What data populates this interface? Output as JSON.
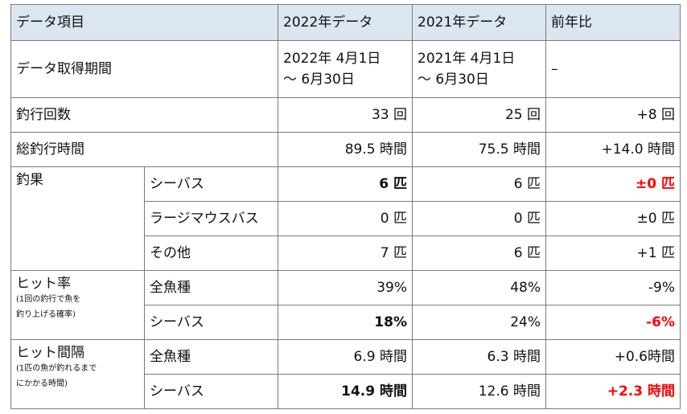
{
  "header": {
    "item": "データ項目",
    "y2022": "2022年データ",
    "y2021": "2021年データ",
    "yoy": "前年比"
  },
  "period": {
    "label": "データ取得期間",
    "y2022_line1": "2022年 4月1日",
    "y2022_line2": "～ 6月30日",
    "y2021_line1": "2021年 4月1日",
    "y2021_line2": "～ 6月30日",
    "yoy": "–"
  },
  "trips": {
    "label": "釣行回数",
    "y2022": "33 回",
    "y2021": "25 回",
    "yoy": "+8 回"
  },
  "hours": {
    "label": "総釣行時間",
    "y2022": "89.5 時間",
    "y2021": "75.5 時間",
    "yoy": "+14.0 時間"
  },
  "catch": {
    "label": "釣果",
    "rows": [
      {
        "name": "シーバス",
        "y2022": "6 匹",
        "y2021": "6 匹",
        "yoy": "±0 匹"
      },
      {
        "name": "ラージマウスバス",
        "y2022": "0 匹",
        "y2021": "0 匹",
        "yoy": "±0 匹"
      },
      {
        "name": "その他",
        "y2022": "7 匹",
        "y2021": "6 匹",
        "yoy": "+1 匹"
      }
    ]
  },
  "hit_rate": {
    "label": "ヒット率",
    "note_line1": "(1回の釣行で魚を",
    "note_line2": "釣り上げる確率)",
    "rows": [
      {
        "name": "全魚種",
        "y2022": "39%",
        "y2021": "48%",
        "yoy": "-9%"
      },
      {
        "name": "シーバス",
        "y2022": "18%",
        "y2021": "24%",
        "yoy": "-6%"
      }
    ]
  },
  "hit_interval": {
    "label": "ヒット間隔",
    "note_line1": "(1匹の魚が釣れるまで",
    "note_line2": "にかかる時間)",
    "rows": [
      {
        "name": "全魚種",
        "y2022": "6.9 時間",
        "y2021": "6.3 時間",
        "yoy": "+0.6時間"
      },
      {
        "name": "シーバス",
        "y2022": "14.9 時間",
        "y2021": "12.6 時間",
        "yoy": "+2.3 時間"
      }
    ]
  },
  "colors": {
    "header_bg": "#dce6f1",
    "highlight": "#ff0000",
    "border": "#7a7a7a"
  }
}
